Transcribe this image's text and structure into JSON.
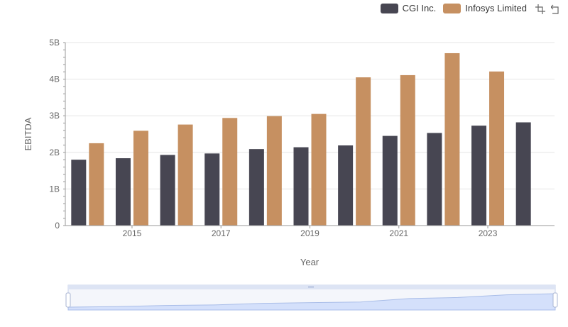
{
  "colors": {
    "cgi": "#474652",
    "infosys": "#c69061",
    "grid": "#e6e6e6",
    "axis_text": "#666666",
    "zoom_fill": "#d4e0fb",
    "zoom_border": "#c9d3ea"
  },
  "icons": [
    "zoom-icon",
    "restore-icon"
  ],
  "zoom": {
    "start": 0,
    "end": 100
  },
  "chart_data": {
    "type": "bar",
    "xlabel": "Year",
    "ylabel": "EBITDA",
    "x": [
      2014,
      2015,
      2016,
      2017,
      2018,
      2019,
      2020,
      2021,
      2022,
      2023,
      2024
    ],
    "x_tick_labels": [
      "2015",
      "2017",
      "2019",
      "2021",
      "2023"
    ],
    "y_tick_labels": [
      "0",
      "1B",
      "2B",
      "3B",
      "4B",
      "5B"
    ],
    "ylim": [
      0,
      5000000000
    ],
    "grid": true,
    "legend": "top-right",
    "series": [
      {
        "name": "CGI Inc.",
        "values": [
          1800000000,
          1840000000,
          1930000000,
          1970000000,
          2090000000,
          2140000000,
          2190000000,
          2450000000,
          2530000000,
          2730000000,
          2820000000
        ]
      },
      {
        "name": "Infosys Limited",
        "values": [
          2250000000,
          2590000000,
          2760000000,
          2940000000,
          2990000000,
          3050000000,
          4050000000,
          4110000000,
          4710000000,
          4210000000,
          null
        ]
      }
    ]
  }
}
